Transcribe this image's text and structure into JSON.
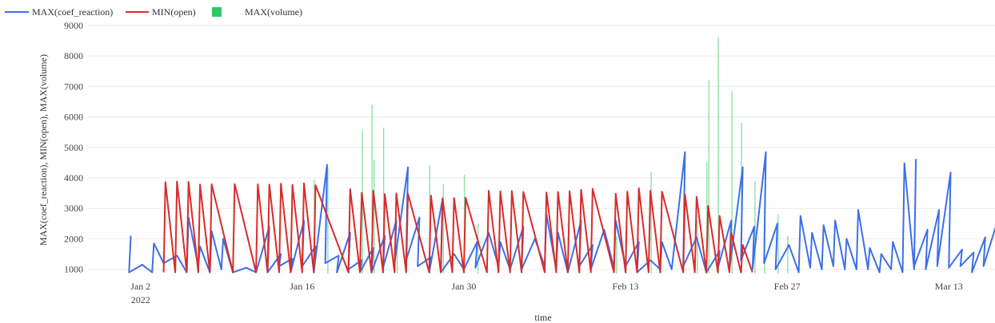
{
  "chart_data": {
    "type": "line",
    "xlabel": "time",
    "ylabel": "MAX(coef_reaction), MIN(open), MAX(volume)",
    "ylim": [
      860,
      9000
    ],
    "xlim": [
      "2021-12-29",
      "2022-03-17"
    ],
    "grid": true,
    "legend": "top-left",
    "y_ticks": [
      "1000",
      "2000",
      "3000",
      "4000",
      "5000",
      "6000",
      "7000",
      "8000",
      "9000"
    ],
    "x_ticks": [
      {
        "date": "2022-01-02",
        "label": "Jan 2",
        "sublabel": "2022"
      },
      {
        "date": "2022-01-16",
        "label": "Jan 16",
        "sublabel": ""
      },
      {
        "date": "2022-01-30",
        "label": "Jan 30",
        "sublabel": ""
      },
      {
        "date": "2022-02-13",
        "label": "Feb 13",
        "sublabel": ""
      },
      {
        "date": "2022-02-27",
        "label": "Feb 27",
        "sublabel": ""
      },
      {
        "date": "2022-03-13",
        "label": "Mar 13",
        "sublabel": ""
      }
    ],
    "series": [
      {
        "name": "MAX(coef_reaction)",
        "mark": "line",
        "color": "#3d6fe8",
        "points": [
          [
            "2022-01-01",
            900
          ],
          [
            "2022-01-01",
            2080
          ],
          [
            "2022-01-01",
            900
          ],
          [
            "2022-01-02",
            1150
          ],
          [
            "2022-01-03",
            900
          ],
          [
            "2022-01-03",
            1850
          ],
          [
            "2022-01-04",
            1200
          ],
          [
            "2022-01-05",
            1450
          ],
          [
            "2022-01-06",
            900
          ],
          [
            "2022-01-06",
            2700
          ],
          [
            "2022-01-07",
            1100
          ],
          [
            "2022-01-07",
            1750
          ],
          [
            "2022-01-08",
            900
          ],
          [
            "2022-01-08",
            2250
          ],
          [
            "2022-01-09",
            1000
          ],
          [
            "2022-01-09",
            2000
          ],
          [
            "2022-01-10",
            900
          ],
          [
            "2022-01-11",
            1050
          ],
          [
            "2022-01-12",
            900
          ],
          [
            "2022-01-13",
            2400
          ],
          [
            "2022-01-13",
            900
          ],
          [
            "2022-01-14",
            1500
          ],
          [
            "2022-01-14",
            1100
          ],
          [
            "2022-01-15",
            1350
          ],
          [
            "2022-01-15",
            900
          ],
          [
            "2022-01-16",
            2600
          ],
          [
            "2022-01-16",
            1100
          ],
          [
            "2022-01-17",
            1750
          ],
          [
            "2022-01-17",
            900
          ],
          [
            "2022-01-18",
            4430
          ],
          [
            "2022-01-18",
            1200
          ],
          [
            "2022-01-19",
            1450
          ],
          [
            "2022-01-19",
            900
          ],
          [
            "2022-01-20",
            2200
          ],
          [
            "2022-01-20",
            1000
          ],
          [
            "2022-01-21",
            1300
          ],
          [
            "2022-01-21",
            900
          ],
          [
            "2022-01-22",
            1700
          ],
          [
            "2022-01-22",
            900
          ],
          [
            "2022-01-23",
            2100
          ],
          [
            "2022-01-23",
            1050
          ],
          [
            "2022-01-24",
            2600
          ],
          [
            "2022-01-24",
            1200
          ],
          [
            "2022-01-25",
            4350
          ],
          [
            "2022-01-25",
            1300
          ],
          [
            "2022-01-26",
            2700
          ],
          [
            "2022-01-26",
            1100
          ],
          [
            "2022-01-27",
            1400
          ],
          [
            "2022-01-27",
            900
          ],
          [
            "2022-01-28",
            3300
          ],
          [
            "2022-01-28",
            900
          ],
          [
            "2022-01-29",
            1500
          ],
          [
            "2022-01-30",
            1000
          ],
          [
            "2022-01-31",
            1900
          ],
          [
            "2022-01-31",
            1050
          ],
          [
            "2022-02-01",
            2200
          ],
          [
            "2022-02-02",
            1100
          ],
          [
            "2022-02-02",
            1900
          ],
          [
            "2022-02-03",
            1000
          ],
          [
            "2022-02-04",
            2400
          ],
          [
            "2022-02-04",
            1000
          ],
          [
            "2022-02-05",
            2000
          ],
          [
            "2022-02-06",
            1100
          ],
          [
            "2022-02-06",
            2800
          ],
          [
            "2022-02-07",
            1000
          ],
          [
            "2022-02-07",
            2200
          ],
          [
            "2022-02-08",
            900
          ],
          [
            "2022-02-09",
            2600
          ],
          [
            "2022-02-09",
            1100
          ],
          [
            "2022-02-10",
            1800
          ],
          [
            "2022-02-10",
            1000
          ],
          [
            "2022-02-11",
            2300
          ],
          [
            "2022-02-12",
            1050
          ],
          [
            "2022-02-12",
            2600
          ],
          [
            "2022-02-13",
            1100
          ],
          [
            "2022-02-14",
            1900
          ],
          [
            "2022-02-14",
            900
          ],
          [
            "2022-02-15",
            1300
          ],
          [
            "2022-02-16",
            1000
          ],
          [
            "2022-02-16",
            1900
          ],
          [
            "2022-02-17",
            1000
          ],
          [
            "2022-02-18",
            4850
          ],
          [
            "2022-02-18",
            1100
          ],
          [
            "2022-02-19",
            2050
          ],
          [
            "2022-02-20",
            900
          ],
          [
            "2022-02-21",
            1600
          ],
          [
            "2022-02-21",
            1050
          ],
          [
            "2022-02-22",
            2600
          ],
          [
            "2022-02-22",
            1000
          ],
          [
            "2022-02-23",
            4350
          ],
          [
            "2022-02-23",
            1300
          ],
          [
            "2022-02-24",
            2400
          ],
          [
            "2022-02-24",
            1000
          ],
          [
            "2022-02-25",
            4850
          ],
          [
            "2022-02-25",
            1200
          ],
          [
            "2022-02-26",
            2500
          ],
          [
            "2022-02-26",
            1000
          ],
          [
            "2022-02-27",
            1800
          ],
          [
            "2022-02-28",
            900
          ],
          [
            "2022-02-28",
            2750
          ],
          [
            "2022-03-01",
            1050
          ],
          [
            "2022-03-01",
            2200
          ],
          [
            "2022-03-02",
            1000
          ],
          [
            "2022-03-02",
            2450
          ],
          [
            "2022-03-03",
            1100
          ],
          [
            "2022-03-03",
            2600
          ],
          [
            "2022-03-04",
            1000
          ],
          [
            "2022-03-04",
            2000
          ],
          [
            "2022-03-05",
            1000
          ],
          [
            "2022-03-05",
            2950
          ],
          [
            "2022-03-06",
            1000
          ],
          [
            "2022-03-06",
            1700
          ],
          [
            "2022-03-07",
            900
          ],
          [
            "2022-03-07",
            1500
          ],
          [
            "2022-03-08",
            1000
          ],
          [
            "2022-03-08",
            1900
          ],
          [
            "2022-03-09",
            900
          ],
          [
            "2022-03-09",
            4480
          ],
          [
            "2022-03-10",
            1000
          ],
          [
            "2022-03-10",
            4600
          ],
          [
            "2022-03-10",
            1100
          ],
          [
            "2022-03-11",
            2300
          ],
          [
            "2022-03-11",
            1000
          ],
          [
            "2022-03-12",
            2950
          ],
          [
            "2022-03-12",
            1100
          ],
          [
            "2022-03-13",
            4180
          ],
          [
            "2022-03-13",
            1050
          ],
          [
            "2022-03-14",
            1650
          ],
          [
            "2022-03-14",
            1100
          ],
          [
            "2022-03-15",
            1550
          ],
          [
            "2022-03-15",
            900
          ],
          [
            "2022-03-16",
            2050
          ],
          [
            "2022-03-16",
            1100
          ],
          [
            "2022-03-17",
            2500
          ]
        ]
      },
      {
        "name": "MIN(open)",
        "mark": "line",
        "color": "#d92b2b",
        "points": [
          [
            "2022-01-04",
            900
          ],
          [
            "2022-01-04",
            3860
          ],
          [
            "2022-01-05",
            900
          ],
          [
            "2022-01-05",
            3880
          ],
          [
            "2022-01-06",
            900
          ],
          [
            "2022-01-06",
            3870
          ],
          [
            "2022-01-07",
            900
          ],
          [
            "2022-01-07",
            3780
          ],
          [
            "2022-01-08",
            900
          ],
          [
            "2022-01-08",
            3790
          ],
          [
            "2022-01-10",
            900
          ],
          [
            "2022-01-10",
            3800
          ],
          [
            "2022-01-12",
            900
          ],
          [
            "2022-01-12",
            3790
          ],
          [
            "2022-01-13",
            900
          ],
          [
            "2022-01-13",
            3780
          ],
          [
            "2022-01-14",
            900
          ],
          [
            "2022-01-14",
            3810
          ],
          [
            "2022-01-15",
            900
          ],
          [
            "2022-01-15",
            3770
          ],
          [
            "2022-01-16",
            900
          ],
          [
            "2022-01-16",
            3820
          ],
          [
            "2022-01-17",
            900
          ],
          [
            "2022-01-17",
            3760
          ],
          [
            "2022-01-20",
            900
          ],
          [
            "2022-01-20",
            3630
          ],
          [
            "2022-01-21",
            900
          ],
          [
            "2022-01-21",
            3510
          ],
          [
            "2022-01-22",
            900
          ],
          [
            "2022-01-22",
            3580
          ],
          [
            "2022-01-23",
            900
          ],
          [
            "2022-01-23",
            3470
          ],
          [
            "2022-01-24",
            900
          ],
          [
            "2022-01-24",
            3490
          ],
          [
            "2022-01-25",
            900
          ],
          [
            "2022-01-25",
            3480
          ],
          [
            "2022-01-27",
            900
          ],
          [
            "2022-01-27",
            3420
          ],
          [
            "2022-01-28",
            900
          ],
          [
            "2022-01-28",
            3330
          ],
          [
            "2022-01-29",
            900
          ],
          [
            "2022-01-29",
            3340
          ],
          [
            "2022-01-30",
            900
          ],
          [
            "2022-01-30",
            3350
          ],
          [
            "2022-02-01",
            900
          ],
          [
            "2022-02-01",
            3580
          ],
          [
            "2022-02-02",
            900
          ],
          [
            "2022-02-02",
            3560
          ],
          [
            "2022-02-03",
            900
          ],
          [
            "2022-02-03",
            3570
          ],
          [
            "2022-02-04",
            900
          ],
          [
            "2022-02-04",
            3540
          ],
          [
            "2022-02-06",
            900
          ],
          [
            "2022-02-06",
            3520
          ],
          [
            "2022-02-07",
            900
          ],
          [
            "2022-02-07",
            3540
          ],
          [
            "2022-02-08",
            900
          ],
          [
            "2022-02-08",
            3560
          ],
          [
            "2022-02-09",
            900
          ],
          [
            "2022-02-09",
            3610
          ],
          [
            "2022-02-10",
            900
          ],
          [
            "2022-02-10",
            3640
          ],
          [
            "2022-02-12",
            900
          ],
          [
            "2022-02-12",
            3480
          ],
          [
            "2022-02-13",
            900
          ],
          [
            "2022-02-13",
            3550
          ],
          [
            "2022-02-14",
            900
          ],
          [
            "2022-02-14",
            3660
          ],
          [
            "2022-02-15",
            900
          ],
          [
            "2022-02-15",
            3580
          ],
          [
            "2022-02-16",
            900
          ],
          [
            "2022-02-16",
            3550
          ],
          [
            "2022-02-18",
            900
          ],
          [
            "2022-02-18",
            3460
          ],
          [
            "2022-02-19",
            900
          ],
          [
            "2022-02-19",
            3380
          ],
          [
            "2022-02-20",
            900
          ],
          [
            "2022-02-20",
            3080
          ],
          [
            "2022-02-21",
            900
          ],
          [
            "2022-02-21",
            2750
          ],
          [
            "2022-02-22",
            900
          ],
          [
            "2022-02-22",
            2200
          ],
          [
            "2022-02-23",
            900
          ],
          [
            "2022-02-23",
            1800
          ],
          [
            "2022-02-24",
            900
          ]
        ]
      },
      {
        "name": "MAX(volume)",
        "mark": "bar",
        "color": "#2ec866",
        "points": [
          [
            "2022-01-17",
            3950
          ],
          [
            "2022-01-18",
            4350
          ],
          [
            "2022-01-20",
            2400
          ],
          [
            "2022-01-21",
            5550
          ],
          [
            "2022-01-22",
            6400
          ],
          [
            "2022-01-22",
            4600
          ],
          [
            "2022-01-23",
            5650
          ],
          [
            "2022-01-24",
            2000
          ],
          [
            "2022-01-27",
            4400
          ],
          [
            "2022-01-28",
            3800
          ],
          [
            "2022-01-30",
            4100
          ],
          [
            "2022-01-31",
            2500
          ],
          [
            "2022-02-09",
            2300
          ],
          [
            "2022-02-12",
            2100
          ],
          [
            "2022-02-13",
            2200
          ],
          [
            "2022-02-15",
            4200
          ],
          [
            "2022-02-16",
            2400
          ],
          [
            "2022-02-19",
            2600
          ],
          [
            "2022-02-20",
            4500
          ],
          [
            "2022-02-20",
            7200
          ],
          [
            "2022-02-21",
            8600
          ],
          [
            "2022-02-22",
            6850
          ],
          [
            "2022-02-23",
            5800
          ],
          [
            "2022-02-24",
            3900
          ],
          [
            "2022-02-25",
            3500
          ],
          [
            "2022-02-26",
            2800
          ],
          [
            "2022-02-27",
            2100
          ]
        ]
      }
    ]
  }
}
